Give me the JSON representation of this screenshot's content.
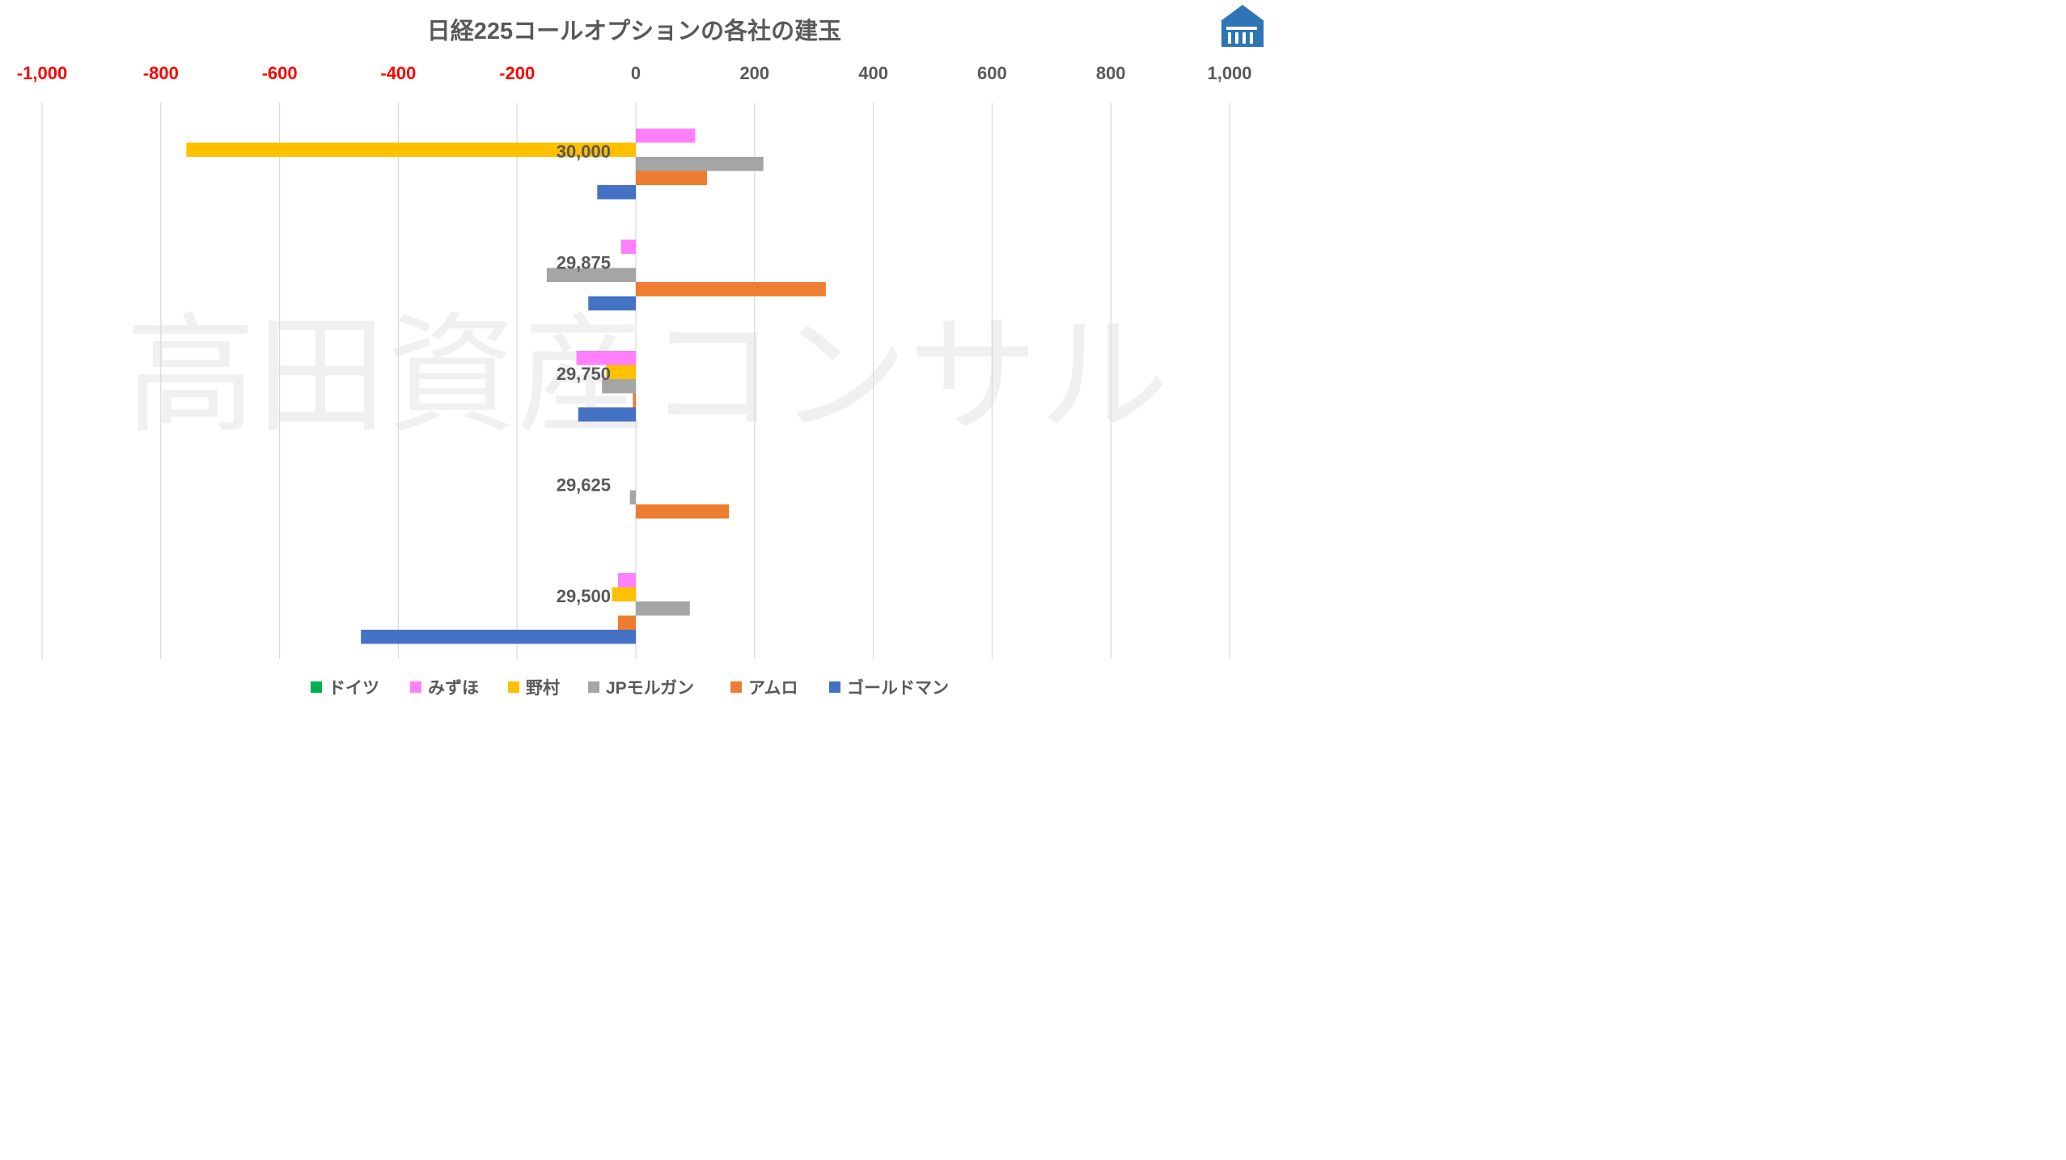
{
  "chart_data": {
    "type": "bar",
    "orientation": "horizontal",
    "title": "日経225コールオプションの各社の建玉",
    "xlabel": "",
    "ylabel": "",
    "xlim": [
      -1000,
      1000
    ],
    "x_ticks": [
      -1000,
      -800,
      -600,
      -400,
      -200,
      0,
      200,
      400,
      600,
      800,
      1000
    ],
    "x_tick_labels": [
      "-1,000",
      "-800",
      "-600",
      "-400",
      "-200",
      "0",
      "200",
      "400",
      "600",
      "800",
      "1,000"
    ],
    "negative_tick_color": "#ff0000",
    "positive_tick_color": "#595959",
    "grid": "vertical",
    "legend_position": "bottom",
    "categories": [
      "30,000",
      "29,875",
      "29,750",
      "29,625",
      "29,500"
    ],
    "series": [
      {
        "name": "ドイツ",
        "color": "#00b050",
        "values": [
          0,
          0,
          0,
          0,
          0
        ]
      },
      {
        "name": "みずほ",
        "color": "#ff80ff",
        "values": [
          100,
          -25,
          -100,
          0,
          -30
        ]
      },
      {
        "name": "野村",
        "color": "#ffc000",
        "values": [
          -757,
          0,
          -50,
          0,
          -40
        ]
      },
      {
        "name": "JPモルガン",
        "color": "#a5a5a5",
        "values": [
          215,
          -150,
          -57,
          -10,
          91
        ]
      },
      {
        "name": "アムロ",
        "color": "#ed7d31",
        "values": [
          120,
          320,
          -5,
          157,
          -30
        ]
      },
      {
        "name": "ゴールドマン",
        "color": "#4472c4",
        "values": [
          -65,
          -80,
          -97,
          0,
          -463
        ]
      }
    ]
  },
  "watermark": "高田資産コンサル",
  "logo": {
    "icon": "building-logo-icon",
    "color": "#1f77b4"
  }
}
